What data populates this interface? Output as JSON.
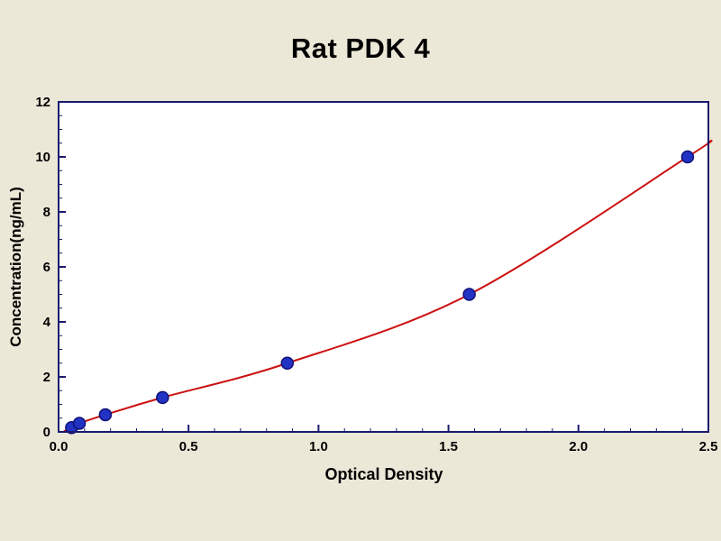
{
  "title": "Rat PDK 4",
  "chart_data": {
    "type": "scatter",
    "title": "Rat PDK 4",
    "xlabel": "Optical Density",
    "ylabel": "Concentration(ng/mL)",
    "xlim": [
      0.0,
      2.5
    ],
    "ylim": [
      0,
      12
    ],
    "x_ticks": [
      0.0,
      0.5,
      1.0,
      1.5,
      2.0,
      2.5
    ],
    "x_tick_labels": [
      "0.0",
      "0.5",
      "1.0",
      "1.5",
      "2.0",
      "2.5"
    ],
    "x_minor_step": 0.1,
    "y_ticks": [
      0,
      2,
      4,
      6,
      8,
      10,
      12
    ],
    "y_tick_labels": [
      "0",
      "2",
      "4",
      "6",
      "8",
      "10",
      "12"
    ],
    "y_minor_step": 0.5,
    "grid": false,
    "legend": "none",
    "plot_bg": "#ffffff",
    "page_bg": "#ece8d8",
    "frame_color": "#1a1a6e",
    "series": [
      {
        "name": "standard-points",
        "type": "scatter",
        "marker": "circle",
        "marker_radius": 6.5,
        "fill": "#2233c4",
        "stroke": "#101077",
        "points": [
          {
            "x": 0.05,
            "y": 0.156
          },
          {
            "x": 0.08,
            "y": 0.312
          },
          {
            "x": 0.18,
            "y": 0.625
          },
          {
            "x": 0.4,
            "y": 1.25
          },
          {
            "x": 0.88,
            "y": 2.5
          },
          {
            "x": 1.58,
            "y": 5.0
          },
          {
            "x": 2.42,
            "y": 10.0
          }
        ]
      },
      {
        "name": "fitted-curve",
        "type": "line",
        "color": "#cc1111",
        "width": 2,
        "start": {
          "x": 0.02,
          "y": 0.02
        },
        "end": {
          "x": 2.5,
          "y": 10.55
        }
      }
    ]
  }
}
